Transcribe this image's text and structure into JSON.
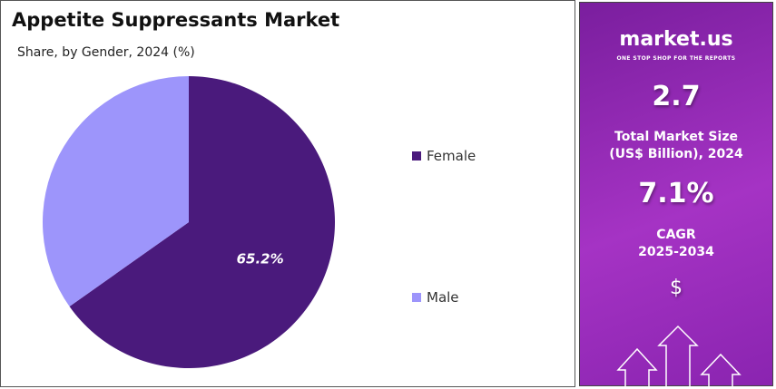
{
  "title": "Appetite Suppressants Market",
  "subtitle": "Share, by Gender, 2024 (%)",
  "chart_data": {
    "type": "pie",
    "categories": [
      "Female",
      "Male"
    ],
    "values": [
      65.2,
      34.8
    ],
    "colors": [
      "#4a1a7c",
      "#9d95fb"
    ],
    "data_labels": [
      "65.2%",
      ""
    ],
    "legend_placement": "right",
    "start_angle": "top, clockwise"
  },
  "sidebar": {
    "brand": "market.us",
    "tagline": "ONE STOP SHOP FOR THE REPORTS",
    "market_size": "2.7",
    "market_size_label_1": "Total Market Size",
    "market_size_label_2": "(US$ Billion), 2024",
    "cagr": "7.1%",
    "cagr_label_1": "CAGR",
    "cagr_label_2": "2025-2034",
    "dollar": "$"
  }
}
